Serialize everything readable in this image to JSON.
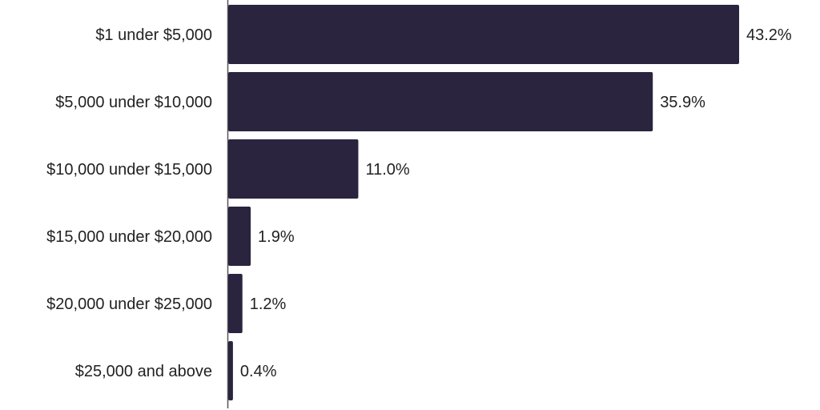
{
  "chart_data": {
    "type": "bar",
    "orientation": "horizontal",
    "categories": [
      "$1 under $5,000",
      "$5,000 under $10,000",
      "$10,000 under $15,000",
      "$15,000 under $20,000",
      "$20,000 under $25,000",
      "$25,000 and above"
    ],
    "values": [
      43.2,
      35.9,
      11.0,
      1.9,
      1.2,
      0.4
    ],
    "value_labels": [
      "43.2%",
      "35.9%",
      "11.0%",
      "1.9%",
      "1.2%",
      "0.4%"
    ],
    "unit": "%",
    "xlim": [
      0,
      43.2
    ],
    "grid": false,
    "colors": {
      "bar": "#2a243f",
      "axis": "#555555",
      "text": "#222222"
    }
  }
}
